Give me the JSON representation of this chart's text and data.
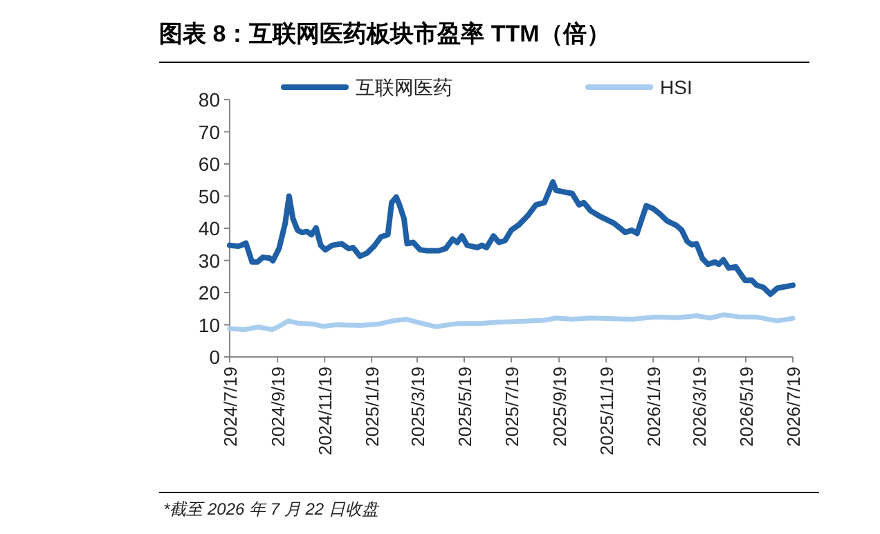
{
  "chart_data": {
    "type": "line",
    "title": "图表 8：互联网医药板块市盈率 TTM（倍）",
    "annotations": [
      "*截至 2026 年 7 月 22 日收盘"
    ],
    "legend": "top",
    "grid": false,
    "line_style": "solid",
    "marker": "none",
    "xlim": [
      "2024-07-19",
      "2026-07-19"
    ],
    "xticks": [
      {
        "value": "2024-07-19",
        "label": "2024/7/19"
      },
      {
        "value": "2024-09-19",
        "label": "2024/9/19"
      },
      {
        "value": "2024-11-19",
        "label": "2024/11/19"
      },
      {
        "value": "2025-01-19",
        "label": "2025/1/19"
      },
      {
        "value": "2025-03-19",
        "label": "2025/3/19"
      },
      {
        "value": "2025-05-19",
        "label": "2025/5/19"
      },
      {
        "value": "2025-07-19",
        "label": "2025/7/19"
      },
      {
        "value": "2025-09-19",
        "label": "2025/9/19"
      },
      {
        "value": "2025-11-19",
        "label": "2025/11/19"
      },
      {
        "value": "2026-01-19",
        "label": "2026/1/19"
      },
      {
        "value": "2026-03-19",
        "label": "2026/3/19"
      },
      {
        "value": "2026-05-19",
        "label": "2026/5/19"
      },
      {
        "value": "2026-07-19",
        "label": "2026/7/19"
      }
    ],
    "ylim": [
      0,
      80
    ],
    "yticks": [
      0,
      10,
      20,
      30,
      40,
      50,
      60,
      70,
      80
    ],
    "series": [
      {
        "name": "互联网医药",
        "color": "#1f5fa6",
        "x": [
          "2024-07-19",
          "2024-07-30",
          "2024-08-03",
          "2024-08-09",
          "2024-08-17",
          "2024-08-24",
          "2024-08-31",
          "2024-09-09",
          "2024-09-13",
          "2024-09-21",
          "2024-09-29",
          "2024-10-04",
          "2024-10-09",
          "2024-10-15",
          "2024-10-21",
          "2024-10-27",
          "2024-11-02",
          "2024-11-08",
          "2024-11-14",
          "2024-11-20",
          "2024-11-29",
          "2024-12-11",
          "2024-12-20",
          "2024-12-26",
          "2025-01-04",
          "2025-01-13",
          "2025-01-22",
          "2025-01-31",
          "2025-02-09",
          "2025-02-14",
          "2025-02-20",
          "2025-02-24",
          "2025-03-02",
          "2025-03-06",
          "2025-03-14",
          "2025-03-23",
          "2025-04-01",
          "2025-04-16",
          "2025-04-25",
          "2025-05-04",
          "2025-05-10",
          "2025-05-16",
          "2025-05-23",
          "2025-06-05",
          "2025-06-11",
          "2025-06-17",
          "2025-06-26",
          "2025-07-03",
          "2025-07-11",
          "2025-07-19",
          "2025-07-29",
          "2025-08-10",
          "2025-08-20",
          "2025-08-31",
          "2025-09-11",
          "2025-09-15",
          "2025-09-27",
          "2025-10-06",
          "2025-10-15",
          "2025-10-21",
          "2025-10-30",
          "2025-11-11",
          "2025-11-29",
          "2025-12-14",
          "2025-12-22",
          "2025-12-29",
          "2026-01-10",
          "2026-01-19",
          "2026-01-28",
          "2026-02-06",
          "2026-02-18",
          "2026-02-25",
          "2026-03-04",
          "2026-03-10",
          "2026-03-16",
          "2026-03-24",
          "2026-03-31",
          "2026-04-09",
          "2026-04-14",
          "2026-04-20",
          "2026-04-27",
          "2026-05-06",
          "2026-05-12",
          "2026-05-18",
          "2026-05-27",
          "2026-06-02",
          "2026-06-11",
          "2026-06-20",
          "2026-06-29",
          "2026-07-11",
          "2026-07-19"
        ],
        "values": [
          34.7,
          34.4,
          34.7,
          35.4,
          29.5,
          29.5,
          31,
          30.7,
          29.9,
          33.7,
          41.6,
          50,
          43,
          39.4,
          38.7,
          39,
          38,
          40.1,
          34.7,
          33.3,
          34.7,
          35.2,
          33.7,
          34,
          31.3,
          32.3,
          34.4,
          37.3,
          38,
          48,
          49.7,
          47.3,
          43,
          35.2,
          35.6,
          33.3,
          33,
          33,
          33.7,
          36.6,
          35.6,
          37.6,
          34.7,
          34,
          34.7,
          34,
          37.6,
          35.6,
          36.2,
          39.4,
          41.1,
          44.1,
          47.3,
          48,
          54.4,
          51.8,
          51.2,
          50.8,
          47.3,
          48,
          45.4,
          43.7,
          41.6,
          38.7,
          39.4,
          38.4,
          47,
          46.1,
          44.4,
          42.3,
          40.9,
          39.4,
          35.9,
          34.9,
          35.2,
          30.5,
          28.8,
          29.5,
          28.8,
          30.2,
          27.6,
          28,
          25.9,
          23.8,
          23.8,
          22.3,
          21.6,
          19.5,
          21.4,
          21.9,
          22.3
        ]
      },
      {
        "name": "HSI",
        "color": "#a9cdee",
        "x": [
          "2024-07-19",
          "2024-08-07",
          "2024-08-25",
          "2024-09-12",
          "2024-09-21",
          "2024-10-03",
          "2024-10-15",
          "2024-11-05",
          "2024-11-17",
          "2024-12-05",
          "2025-01-04",
          "2025-01-28",
          "2025-02-15",
          "2025-03-05",
          "2025-03-29",
          "2025-04-13",
          "2025-05-10",
          "2025-06-08",
          "2025-07-02",
          "2025-08-01",
          "2025-08-31",
          "2025-09-15",
          "2025-10-06",
          "2025-10-30",
          "2025-12-05",
          "2025-12-23",
          "2026-01-22",
          "2026-02-20",
          "2026-03-16",
          "2026-04-03",
          "2026-04-20",
          "2026-05-09",
          "2026-06-02",
          "2026-06-29",
          "2026-07-19"
        ],
        "values": [
          8.8,
          8.5,
          9.3,
          8.5,
          9.5,
          11.2,
          10.5,
          10.2,
          9.5,
          10,
          9.8,
          10.2,
          11.2,
          11.7,
          10.2,
          9.4,
          10.4,
          10.4,
          10.8,
          11.1,
          11.4,
          12.1,
          11.7,
          12.1,
          11.8,
          11.7,
          12.4,
          12.2,
          12.8,
          12.1,
          13.1,
          12.5,
          12.4,
          11.2,
          12
        ]
      }
    ]
  }
}
